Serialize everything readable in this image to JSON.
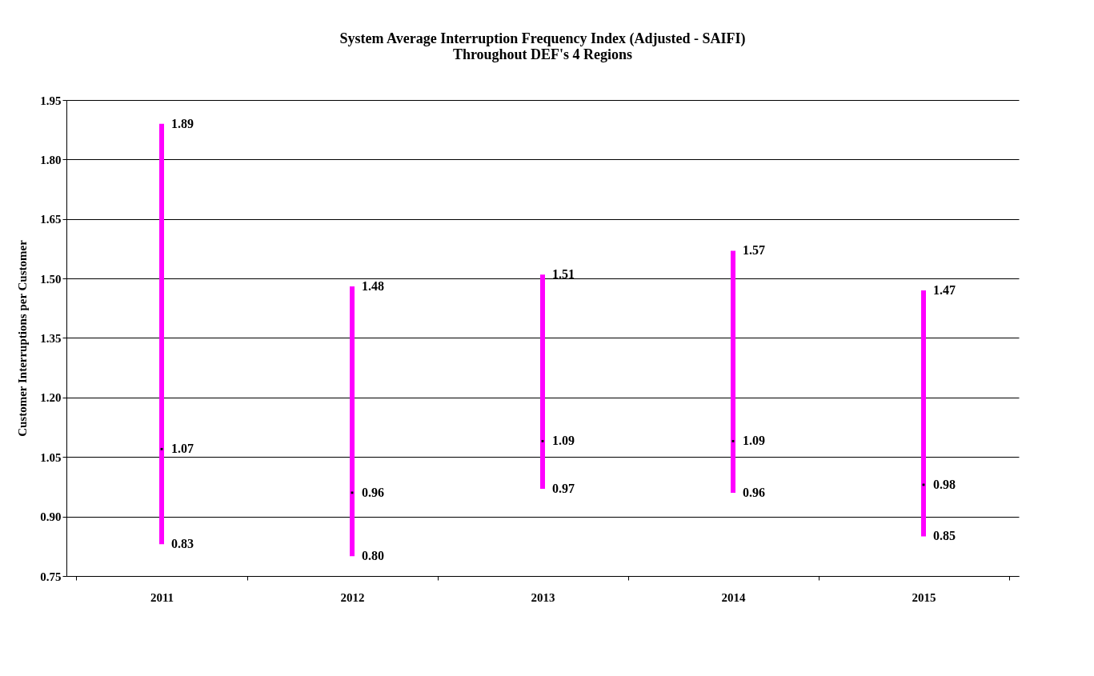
{
  "chart_data": {
    "type": "bar",
    "title": "System Average Interruption Frequency Index (Adjusted - SAIFI)\nThroughout DEF's 4 Regions",
    "ylabel": "Customer Interruptions  per Customer",
    "categories": [
      "2011",
      "2012",
      "2013",
      "2014",
      "2015"
    ],
    "ylim": [
      0.75,
      1.95
    ],
    "yticks": [
      {
        "value": 0.75,
        "label": "0.75"
      },
      {
        "value": 0.9,
        "label": "0.90"
      },
      {
        "value": 1.05,
        "label": "1.05"
      },
      {
        "value": 1.2,
        "label": "1.20"
      },
      {
        "value": 1.35,
        "label": "1.35"
      },
      {
        "value": 1.5,
        "label": "1.50"
      },
      {
        "value": 1.65,
        "label": "1.65"
      },
      {
        "value": 1.8,
        "label": "1.80"
      },
      {
        "value": 1.95,
        "label": "1.95"
      }
    ],
    "grid": "y",
    "series": [
      {
        "type": "bar",
        "color": "#ff00ff",
        "base": [
          0.83,
          0.8,
          0.97,
          0.96,
          0.85
        ],
        "values": [
          1.06,
          0.68,
          0.54,
          0.61,
          0.62
        ]
      },
      {
        "type": "scatter",
        "color": "#000000",
        "marker": "square",
        "values": [
          1.07,
          0.96,
          1.09,
          1.09,
          0.98
        ],
        "value_labels": [
          "1.07",
          "0.96",
          "1.09",
          "1.09",
          "0.98"
        ]
      }
    ],
    "annotations": [
      {
        "text": "1.89",
        "x": "2011",
        "y": 1.89
      },
      {
        "text": "1.48",
        "x": "2012",
        "y": 1.48
      },
      {
        "text": "1.51",
        "x": "2013",
        "y": 1.51
      },
      {
        "text": "1.57",
        "x": "2014",
        "y": 1.57
      },
      {
        "text": "1.47",
        "x": "2015",
        "y": 1.47
      },
      {
        "text": "0.83",
        "x": "2011",
        "y": 0.83
      },
      {
        "text": "0.80",
        "x": "2012",
        "y": 0.8
      },
      {
        "text": "0.97",
        "x": "2013",
        "y": 0.97
      },
      {
        "text": "0.96",
        "x": "2014",
        "y": 0.96
      },
      {
        "text": "0.85",
        "x": "2015",
        "y": 0.85
      }
    ]
  }
}
